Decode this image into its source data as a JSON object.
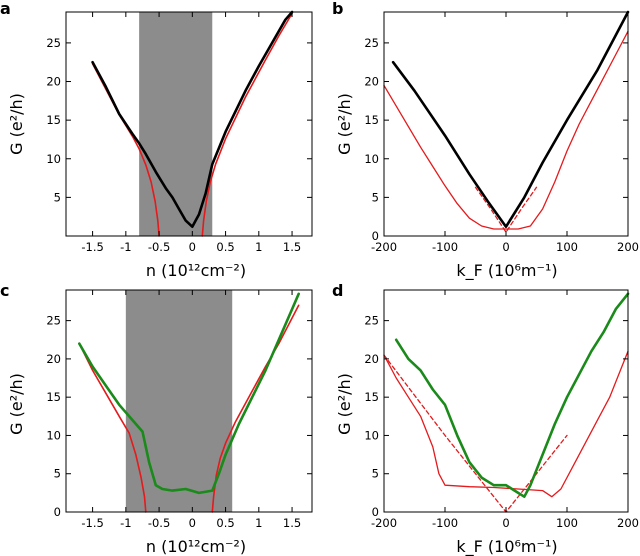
{
  "chart_data": [
    {
      "panel": "a",
      "type": "line",
      "xlabel": "n (10¹²cm⁻²)",
      "ylabel": "G (e²/h)",
      "xlim": [
        -1.9,
        1.8
      ],
      "ylim": [
        0,
        29
      ],
      "xticks": [
        "-1.5",
        "-1",
        "-0.5",
        "0",
        "0.5",
        "1",
        "1.5"
      ],
      "xtick_values": [
        -1.5,
        -1,
        -0.5,
        0,
        0.5,
        1,
        1.5
      ],
      "yticks": [
        "5",
        "10",
        "15",
        "20",
        "25"
      ],
      "ytick_values": [
        5,
        10,
        15,
        20,
        25
      ],
      "shaded_region": [
        -0.8,
        0.3
      ],
      "colors": {
        "data": "#000000",
        "fit": "#e41a1c",
        "shade": "#8c8c8c"
      },
      "series": [
        {
          "x": [
            -1.5,
            -1.3,
            -1.1,
            -0.9,
            -0.8,
            -0.7,
            -0.55,
            -0.4,
            -0.3,
            -0.2,
            -0.1,
            0,
            0.1,
            0.2,
            0.3,
            0.5,
            0.8,
            1.0,
            1.2,
            1.4,
            1.5
          ],
          "y": [
            22.5,
            19.3,
            15.8,
            13.2,
            12.0,
            10.6,
            8.3,
            6.2,
            5.0,
            3.5,
            2.0,
            1.2,
            2.8,
            5.5,
            9.3,
            13.5,
            18.8,
            22.0,
            25.0,
            28.0,
            29.0
          ]
        },
        {
          "x": [
            -1.5,
            -1.3,
            -1.1,
            -0.9,
            -0.8,
            -0.7,
            -0.62,
            -0.56,
            -0.52,
            -0.5
          ],
          "y": [
            22.3,
            19.0,
            15.7,
            12.9,
            11.3,
            9.2,
            7.0,
            4.5,
            2.0,
            0
          ]
        },
        {
          "x": [
            0.15,
            0.17,
            0.21,
            0.27,
            0.35,
            0.5,
            0.8,
            1.1,
            1.3,
            1.5
          ],
          "y": [
            0,
            2.0,
            4.5,
            7.0,
            9.3,
            12.6,
            18.0,
            22.8,
            25.9,
            28.8
          ]
        }
      ]
    },
    {
      "panel": "b",
      "type": "line",
      "xlabel": "k_F (10⁶m⁻¹)",
      "ylabel": "G (e²/h)",
      "xlim": [
        -200,
        200
      ],
      "ylim": [
        0,
        29
      ],
      "xticks": [
        "-200",
        "-100",
        "0",
        "100",
        "200"
      ],
      "xtick_values": [
        -200,
        -100,
        0,
        100,
        200
      ],
      "yticks": [
        "0",
        "5",
        "10",
        "15",
        "20",
        "25"
      ],
      "ytick_values": [
        0,
        5,
        10,
        15,
        20,
        25
      ],
      "colors": {
        "data": "#000000",
        "fit": "#e41a1c"
      },
      "series": [
        {
          "x": [
            -185,
            -150,
            -100,
            -60,
            -30,
            0,
            30,
            60,
            100,
            150,
            200
          ],
          "y": [
            22.5,
            18.8,
            13.0,
            8.0,
            4.5,
            1.2,
            5.0,
            9.5,
            15.0,
            21.5,
            29.0
          ]
        },
        {
          "x": [
            -200,
            -170,
            -140,
            -120,
            -100,
            -80,
            -60,
            -40,
            -20,
            0,
            20,
            40,
            60,
            80,
            100,
            120,
            140,
            160,
            180,
            200
          ],
          "y": [
            19.5,
            15.5,
            11.5,
            9.0,
            6.5,
            4.2,
            2.3,
            1.3,
            0.9,
            0.9,
            0.9,
            1.3,
            3.5,
            7.0,
            11.0,
            14.5,
            17.5,
            20.5,
            23.5,
            26.5
          ]
        },
        {
          "x": [
            -50,
            -25,
            0,
            25,
            50
          ],
          "y": [
            6.3,
            3.5,
            0.5,
            3.5,
            6.3
          ]
        }
      ]
    },
    {
      "panel": "c",
      "type": "line",
      "xlabel": "n (10¹²cm⁻²)",
      "ylabel": "G (e²/h)",
      "xlim": [
        -1.9,
        1.8
      ],
      "ylim": [
        0,
        29
      ],
      "xticks": [
        "-1.5",
        "-1",
        "-0.5",
        "0",
        "0.5",
        "1",
        "1.5"
      ],
      "xtick_values": [
        -1.5,
        -1,
        -0.5,
        0,
        0.5,
        1,
        1.5
      ],
      "yticks": [
        "0",
        "5",
        "10",
        "15",
        "20",
        "25"
      ],
      "ytick_values": [
        0,
        5,
        10,
        15,
        20,
        25
      ],
      "shaded_region": [
        -1.0,
        0.6
      ],
      "colors": {
        "data": "#1a8a1a",
        "fit": "#e41a1c",
        "shade": "#8c8c8c"
      },
      "series": [
        {
          "x": [
            -1.7,
            -1.5,
            -1.3,
            -1.1,
            -0.9,
            -0.75,
            -0.65,
            -0.55,
            -0.45,
            -0.3,
            -0.1,
            0.1,
            0.3,
            0.4,
            0.5,
            0.7,
            0.9,
            1.1,
            1.3,
            1.5,
            1.6
          ],
          "y": [
            22.0,
            19.0,
            16.5,
            14.0,
            12.0,
            10.5,
            6.5,
            3.5,
            3.0,
            2.8,
            3.0,
            2.5,
            2.8,
            5.0,
            7.5,
            11.5,
            15.0,
            18.5,
            22.5,
            26.5,
            28.5
          ]
        },
        {
          "x": [
            -1.7,
            -1.5,
            -1.3,
            -1.1,
            -0.95,
            -0.85,
            -0.77,
            -0.72,
            -0.7
          ],
          "y": [
            22.0,
            18.5,
            15.5,
            12.5,
            10.3,
            7.5,
            4.5,
            2.0,
            0
          ]
        },
        {
          "x": [
            0.3,
            0.32,
            0.36,
            0.42,
            0.5,
            0.65,
            0.9,
            1.1,
            1.3,
            1.6
          ],
          "y": [
            0,
            2.0,
            4.8,
            7.0,
            9.0,
            11.8,
            15.8,
            19.0,
            22.0,
            27.0
          ]
        }
      ]
    },
    {
      "panel": "d",
      "type": "line",
      "xlabel": "k_F (10⁶m⁻¹)",
      "ylabel": "G (e²/h)",
      "xlim": [
        -200,
        200
      ],
      "ylim": [
        0,
        29
      ],
      "xticks": [
        "-200",
        "-100",
        "0",
        "100",
        "200"
      ],
      "xtick_values": [
        -200,
        -100,
        0,
        100,
        200
      ],
      "yticks": [
        "0",
        "5",
        "10",
        "15",
        "20",
        "25"
      ],
      "ytick_values": [
        0,
        5,
        10,
        15,
        20,
        25
      ],
      "colors": {
        "data": "#1a8a1a",
        "fit": "#e41a1c"
      },
      "series": [
        {
          "x": [
            -180,
            -160,
            -140,
            -120,
            -100,
            -80,
            -60,
            -40,
            -20,
            0,
            20,
            30,
            40,
            60,
            80,
            100,
            120,
            140,
            160,
            180,
            200
          ],
          "y": [
            22.5,
            20.0,
            18.5,
            16.0,
            14.0,
            10.0,
            6.5,
            4.5,
            3.5,
            3.5,
            2.5,
            2.0,
            3.5,
            7.5,
            11.5,
            15.0,
            18.0,
            21.0,
            23.5,
            26.5,
            28.5
          ]
        },
        {
          "x": [
            -200,
            -180,
            -160,
            -140,
            -120,
            -110,
            -100,
            -60,
            -20,
            20,
            60,
            75,
            90,
            110,
            130,
            150,
            170,
            200
          ],
          "y": [
            20.5,
            17.5,
            15.0,
            12.5,
            8.5,
            5.0,
            3.5,
            3.3,
            3.2,
            3.0,
            2.8,
            2.0,
            3.0,
            6.0,
            9.0,
            12.0,
            15.0,
            21.0
          ]
        },
        {
          "x": [
            -200,
            -100,
            -40,
            0,
            40,
            100
          ],
          "y": [
            20.5,
            10.0,
            4.0,
            0,
            4.0,
            10.0
          ]
        }
      ]
    }
  ]
}
